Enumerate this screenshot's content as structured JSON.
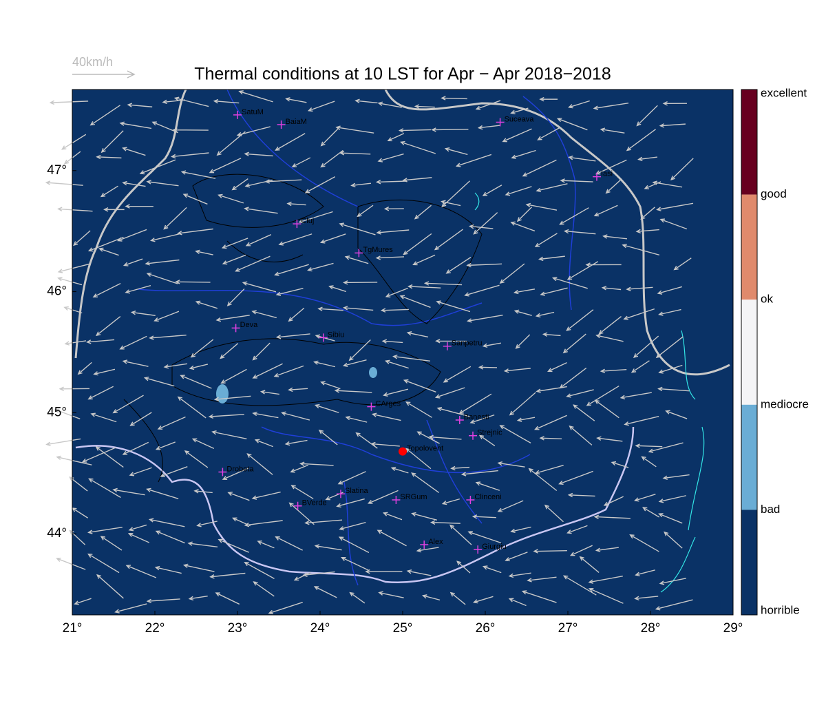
{
  "chart_data": {
    "type": "map",
    "title": "Thermal conditions at 10 LST for Apr − Apr  2018−2018",
    "wind_legend": "40km/h",
    "xlim": [
      21,
      29
    ],
    "ylim": [
      43.33,
      47.67
    ],
    "xticks": [
      {
        "value": 21,
        "label": "21°"
      },
      {
        "value": 22,
        "label": "22°"
      },
      {
        "value": 23,
        "label": "23°"
      },
      {
        "value": 24,
        "label": "24°"
      },
      {
        "value": 25,
        "label": "25°"
      },
      {
        "value": 26,
        "label": "26°"
      },
      {
        "value": 27,
        "label": "27°"
      },
      {
        "value": 28,
        "label": "28°"
      },
      {
        "value": 29,
        "label": "29°"
      }
    ],
    "yticks": [
      {
        "value": 44,
        "label": "44°"
      },
      {
        "value": 45,
        "label": "45°"
      },
      {
        "value": 46,
        "label": "46°"
      },
      {
        "value": 47,
        "label": "47°"
      }
    ],
    "colorbar_labels": [
      "excellent",
      "good",
      "ok",
      "mediocre",
      "bad",
      "horrible"
    ],
    "colorbar_colors": [
      "#67001f",
      "#e08a6c",
      "#f4f4f6",
      "#6aadd5",
      "#0a3266"
    ],
    "sites": [
      {
        "name": "SatuM",
        "lon": 23.0,
        "lat": 47.46
      },
      {
        "name": "BaiaM",
        "lon": 23.53,
        "lat": 47.38
      },
      {
        "name": "Suceava",
        "lon": 26.18,
        "lat": 47.4
      },
      {
        "name": "Iasi",
        "lon": 27.35,
        "lat": 46.95
      },
      {
        "name": "Cluj",
        "lon": 23.72,
        "lat": 46.56
      },
      {
        "name": "TgMures",
        "lon": 24.47,
        "lat": 46.32
      },
      {
        "name": "Deva",
        "lon": 22.98,
        "lat": 45.7
      },
      {
        "name": "Sibiu",
        "lon": 24.04,
        "lat": 45.62
      },
      {
        "name": "Sanpetru",
        "lon": 25.54,
        "lat": 45.55
      },
      {
        "name": "CArges",
        "lon": 24.62,
        "lat": 45.05
      },
      {
        "name": "Banesti",
        "lon": 25.69,
        "lat": 44.94
      },
      {
        "name": "Strejnic",
        "lon": 25.85,
        "lat": 44.81
      },
      {
        "name": "Topolovent",
        "lon": 25.0,
        "lat": 44.68,
        "highlight": "#ff0000"
      },
      {
        "name": "Drobeta",
        "lon": 22.82,
        "lat": 44.51
      },
      {
        "name": "Slatina",
        "lon": 24.25,
        "lat": 44.33
      },
      {
        "name": "SRGum",
        "lon": 24.92,
        "lat": 44.28
      },
      {
        "name": "Clinceni",
        "lon": 25.82,
        "lat": 44.28
      },
      {
        "name": "BVerde",
        "lon": 23.73,
        "lat": 44.23
      },
      {
        "name": "Alex",
        "lon": 25.26,
        "lat": 43.91
      },
      {
        "name": "Giurgiu",
        "lon": 25.91,
        "lat": 43.87
      }
    ]
  }
}
